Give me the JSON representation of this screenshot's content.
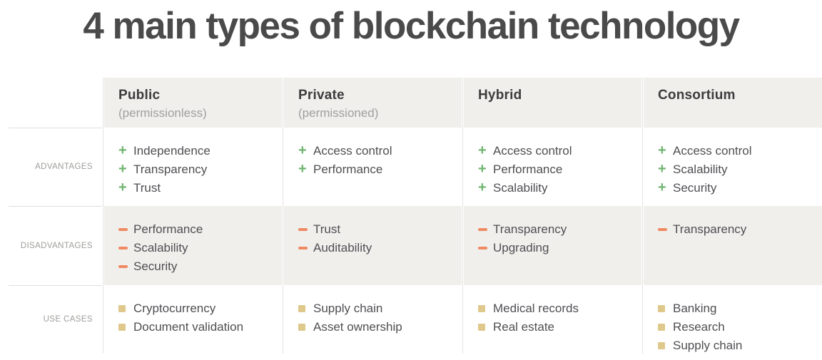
{
  "title": "4 main types of blockchain technology",
  "colors": {
    "advantage_marker": "#6fb46f",
    "disadvantage_marker": "#ef8a62",
    "use_case_marker": "#dec88b",
    "gray_cell_bg": "#f1efec"
  },
  "table": {
    "rows": [
      {
        "key": "advantages",
        "label": "ADVANTAGES",
        "marker": "plus"
      },
      {
        "key": "disadvantages",
        "label": "DISADVANTAGES",
        "marker": "minus"
      },
      {
        "key": "use_cases",
        "label": "USE CASES",
        "marker": "square"
      }
    ],
    "columns": [
      {
        "name": "Public",
        "subtitle": "(permissionless)",
        "advantages": [
          "Independence",
          "Transparency",
          "Trust"
        ],
        "disadvantages": [
          "Performance",
          "Scalability",
          "Security"
        ],
        "use_cases": [
          "Cryptocurrency",
          "Document validation"
        ]
      },
      {
        "name": "Private",
        "subtitle": "(permissioned)",
        "advantages": [
          "Access control",
          "Performance"
        ],
        "disadvantages": [
          "Trust",
          "Auditability"
        ],
        "use_cases": [
          "Supply chain",
          "Asset ownership"
        ]
      },
      {
        "name": "Hybrid",
        "subtitle": "",
        "advantages": [
          "Access control",
          "Performance",
          "Scalability"
        ],
        "disadvantages": [
          "Transparency",
          "Upgrading"
        ],
        "use_cases": [
          "Medical records",
          "Real estate"
        ]
      },
      {
        "name": "Consortium",
        "subtitle": "",
        "advantages": [
          "Access control",
          "Scalability",
          "Security"
        ],
        "disadvantages": [
          "Transparency"
        ],
        "use_cases": [
          "Banking",
          "Research",
          "Supply chain"
        ]
      }
    ]
  }
}
